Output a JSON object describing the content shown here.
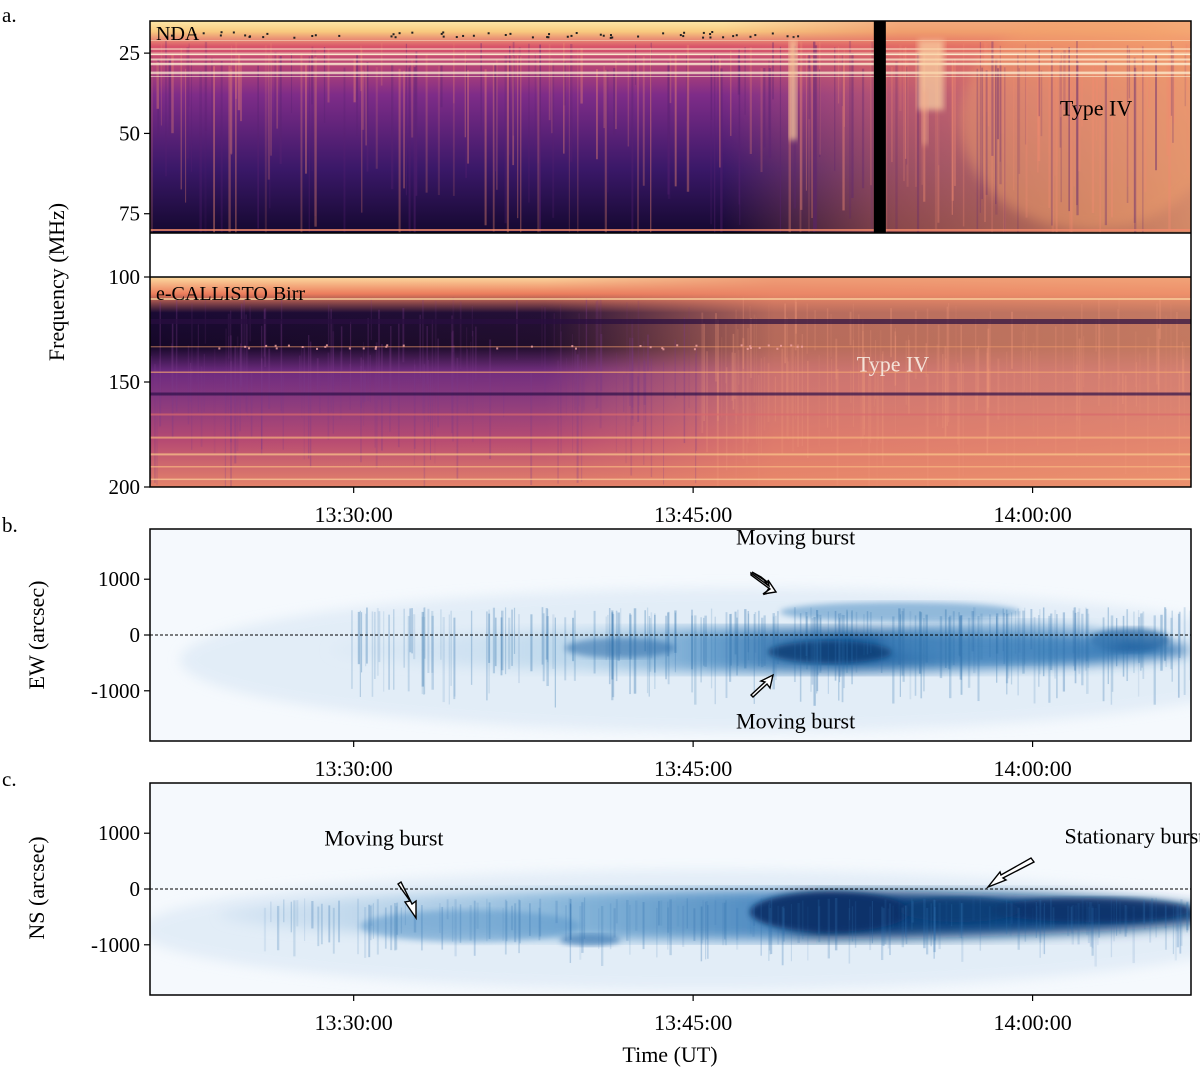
{
  "chart_data": [
    {
      "panel_label": "a.",
      "type": "heatmap",
      "title": "",
      "ylabel": "Frequency  (MHz)",
      "ylim": [
        200,
        15
      ],
      "yticks": [
        25,
        50,
        75,
        100,
        150,
        200
      ],
      "xlim_utc": [
        "13:21:00",
        "14:07:00"
      ],
      "xticks": [
        "13:30:00",
        "13:45:00",
        "14:00:00"
      ],
      "gap_range": [
        81,
        100
      ],
      "colormap": "magma",
      "sub_spectrograms": [
        {
          "instrument": "NDA",
          "freq_range": [
            15,
            81
          ],
          "data_gap_time": "13:53:15",
          "annotations": [
            {
              "text": "Type IV",
              "time": "14:02:00",
              "freq": 45
            }
          ]
        },
        {
          "instrument": "e-CALLISTO Birr",
          "freq_range": [
            100,
            200
          ],
          "annotations": [
            {
              "text": "Type IV",
              "time": "13:54:00",
              "freq": 133
            }
          ]
        }
      ]
    },
    {
      "panel_label": "b.",
      "type": "heatmap",
      "ylabel": "EW (arcsec)",
      "ylim": [
        -1900,
        1900
      ],
      "yticks": [
        1000,
        0,
        -1000
      ],
      "xticks": [
        "13:30:00",
        "13:45:00",
        "14:00:00"
      ],
      "colormap": "Blues",
      "reference_line": 0,
      "annotations": [
        {
          "text": "Moving burst",
          "time": "13:49:00",
          "position": 1550
        },
        {
          "text": "Moving burst",
          "time": "13:49:00",
          "position": -1500
        }
      ]
    },
    {
      "panel_label": "c.",
      "type": "heatmap",
      "ylabel": "NS (arcsec)",
      "ylim": [
        -1900,
        1900
      ],
      "yticks": [
        1000,
        0,
        -1000
      ],
      "xticks": [
        "13:30:00",
        "13:45:00",
        "14:00:00"
      ],
      "xlabel": "Time (UT)",
      "colormap": "Blues",
      "reference_line": 0,
      "annotations": [
        {
          "text": "Moving burst",
          "time": "13:32:00",
          "position": 550
        },
        {
          "text": "Stationary burst",
          "time": "14:04:30",
          "position": 800
        }
      ]
    }
  ]
}
